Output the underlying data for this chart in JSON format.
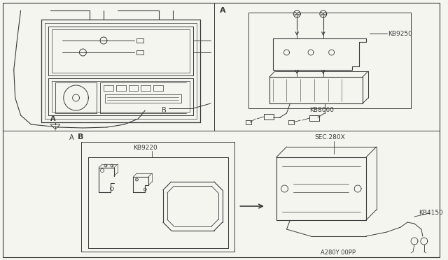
{
  "bg_color": "#f5f5f0",
  "line_color": "#3a3a3a",
  "labels": {
    "A": "A",
    "B": "B",
    "KB9250": "KB9250",
    "KB8060": "KB8060",
    "KB9220": "KB9220",
    "KB4150": "KB4150",
    "SEC280X": "SEC.280X",
    "bottom_code": "A280Y 00PP"
  }
}
